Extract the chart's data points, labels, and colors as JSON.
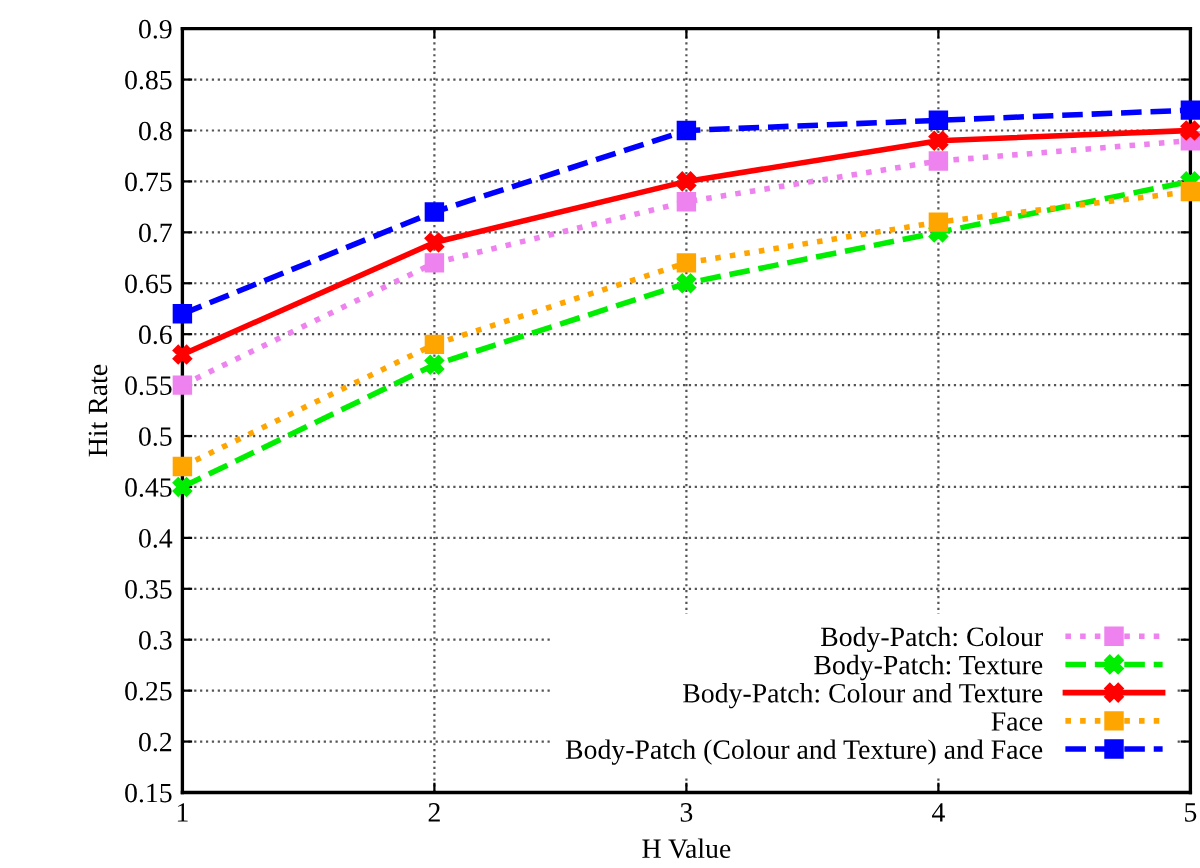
{
  "chart_data": {
    "type": "line",
    "xlabel": "H Value",
    "ylabel": "Hit Rate",
    "x": [
      1,
      2,
      3,
      4,
      5
    ],
    "series": [
      {
        "name": "Body-Patch: Colour",
        "color": "#ee82ee",
        "values": [
          0.55,
          0.67,
          0.73,
          0.77,
          0.79
        ],
        "line_style": "dotted",
        "marker": "square"
      },
      {
        "name": "Body-Patch: Texture",
        "color": "#00ee00",
        "values": [
          0.45,
          0.57,
          0.65,
          0.7,
          0.75
        ],
        "line_style": "dashed",
        "marker": "cross"
      },
      {
        "name": "Body-Patch: Colour and Texture",
        "color": "#ff0000",
        "values": [
          0.58,
          0.69,
          0.75,
          0.79,
          0.8
        ],
        "line_style": "solid",
        "marker": "cross"
      },
      {
        "name": "Face",
        "color": "#ffa500",
        "values": [
          0.47,
          0.59,
          0.67,
          0.71,
          0.74
        ],
        "line_style": "dotted",
        "marker": "square"
      },
      {
        "name": "Body-Patch (Colour and Texture) and Face",
        "color": "#0000ff",
        "values": [
          0.62,
          0.72,
          0.8,
          0.81,
          0.82
        ],
        "line_style": "dashed",
        "marker": "square"
      }
    ],
    "xlim": [
      1,
      5
    ],
    "xticks": [
      1,
      2,
      3,
      4,
      5
    ],
    "ylim": [
      0.15,
      0.9
    ],
    "yticks": [
      0.15,
      0.2,
      0.25,
      0.3,
      0.35,
      0.4,
      0.45,
      0.5,
      0.55,
      0.6,
      0.65,
      0.7,
      0.75,
      0.8,
      0.85,
      0.9
    ],
    "grid": true,
    "legend": "bottom right"
  }
}
